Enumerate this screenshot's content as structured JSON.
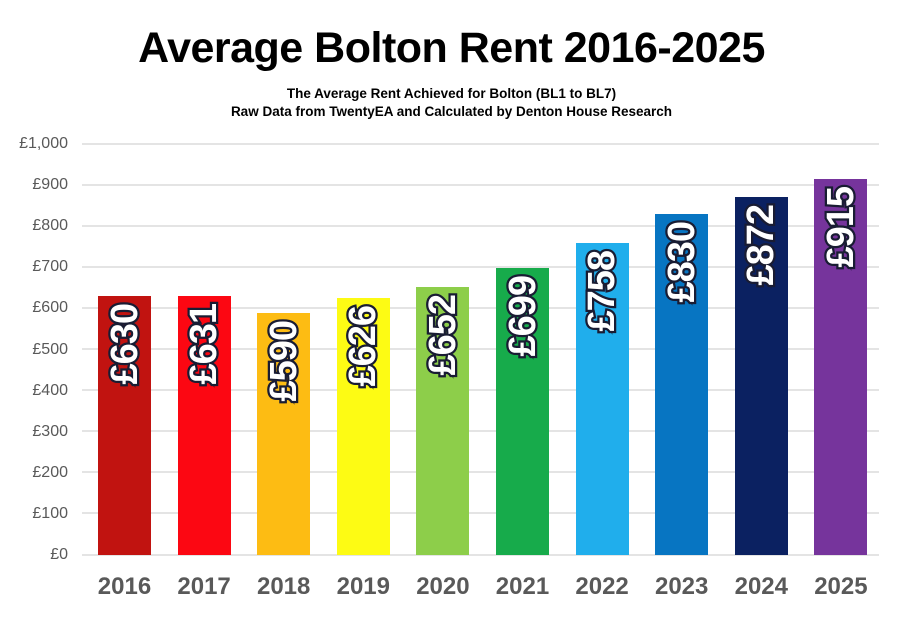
{
  "chart_data": {
    "type": "bar",
    "title": "Average Bolton Rent 2016-2025",
    "subtitle_lines": [
      "The Average Rent Achieved for Bolton (BL1 to BL7)",
      "Raw Data from TwentyEA and Calculated by Denton House Research"
    ],
    "categories": [
      "2016",
      "2017",
      "2018",
      "2019",
      "2020",
      "2021",
      "2022",
      "2023",
      "2024",
      "2025"
    ],
    "values": [
      630,
      631,
      590,
      626,
      652,
      699,
      758,
      830,
      872,
      915
    ],
    "data_labels": [
      "£630",
      "£631",
      "£590",
      "£626",
      "£652",
      "£699",
      "£758",
      "£830",
      "£872",
      "£915"
    ],
    "bar_colors": [
      "#C11310",
      "#FC0712",
      "#FDBC13",
      "#FDFB14",
      "#8DCE4A",
      "#17AB4B",
      "#20AEEC",
      "#0775C2",
      "#0B2161",
      "#76349C"
    ],
    "currency": "£",
    "xlabel": "",
    "ylabel": "",
    "ylim": [
      0,
      1000
    ],
    "y_tick_values": [
      0,
      100,
      200,
      300,
      400,
      500,
      600,
      700,
      800,
      900,
      1000
    ],
    "y_tick_labels": [
      "£0",
      "£100",
      "£200",
      "£300",
      "£400",
      "£500",
      "£600",
      "£700",
      "£800",
      "£900",
      "£1,000"
    ],
    "grid": true,
    "legend": false
  },
  "style": {
    "background": "#FFFFFF",
    "title_color": "#000000",
    "axis_text_color": "#595959",
    "gridline_color": "#E4E4E4",
    "label_text_color": "#FFFFFF",
    "label_outline_color": "#191C33"
  }
}
